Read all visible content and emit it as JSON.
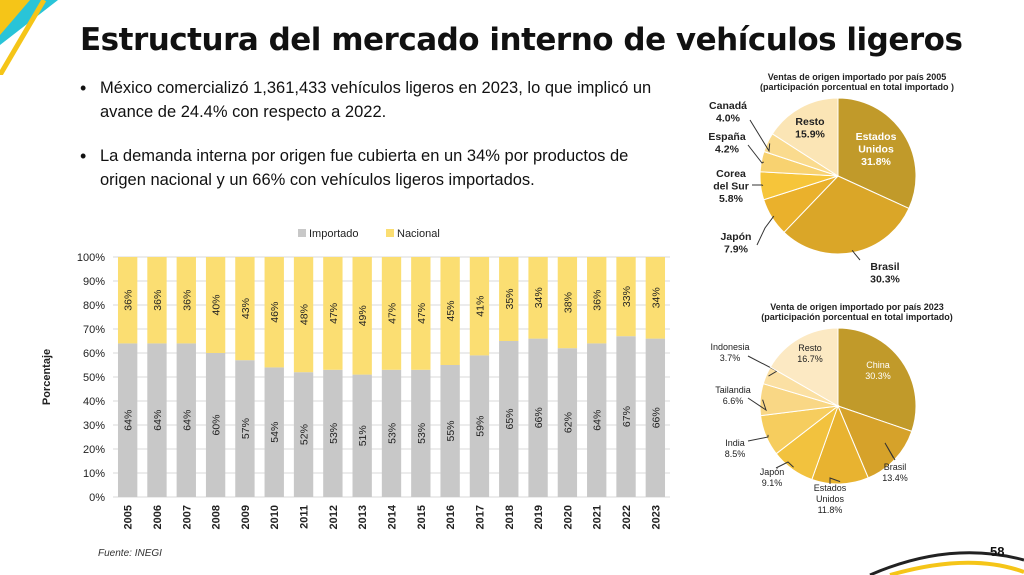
{
  "title": "Estructura del mercado interno de vehículos ligeros",
  "bullets": [
    "México comercializó 1,361,433 vehículos ligeros en 2023, lo que implicó un avance de 24.4% con respecto a 2022.",
    "La demanda interna por origen fue cubierta en un 34% por productos de origen nacional y un 66% con vehículos ligeros importados."
  ],
  "source": "Fuente: INEGI",
  "page_number": "58",
  "colors": {
    "importado": "#c8c8c8",
    "nacional": "#fbde72",
    "accent_yellow": "#f5c518",
    "accent_cyan": "#29c4d8"
  },
  "chart_data": [
    {
      "type": "bar",
      "stacked": true,
      "ylabel": "Porcentaje",
      "ylim": [
        0,
        100
      ],
      "yticks": [
        "0%",
        "10%",
        "20%",
        "30%",
        "40%",
        "50%",
        "60%",
        "70%",
        "80%",
        "90%",
        "100%"
      ],
      "legend_position": "top",
      "categories": [
        "2005",
        "2006",
        "2007",
        "2008",
        "2009",
        "2010",
        "2011",
        "2012",
        "2013",
        "2014",
        "2015",
        "2016",
        "2017",
        "2018",
        "2019",
        "2020",
        "2021",
        "2022",
        "2023"
      ],
      "series": [
        {
          "name": "Importado",
          "values": [
            64,
            64,
            64,
            60,
            57,
            54,
            52,
            53,
            51,
            53,
            53,
            55,
            59,
            65,
            66,
            62,
            64,
            67,
            66
          ],
          "labels": [
            "64%",
            "64%",
            "64%",
            "60%",
            "57%",
            "54%",
            "52%",
            "53%",
            "51%",
            "53%",
            "53%",
            "55%",
            "59%",
            "65%",
            "66%",
            "62%",
            "64%",
            "67%",
            "66%"
          ]
        },
        {
          "name": "Nacional",
          "values": [
            36,
            36,
            36,
            40,
            43,
            46,
            48,
            47,
            49,
            47,
            47,
            45,
            41,
            35,
            34,
            38,
            36,
            33,
            34
          ],
          "labels": [
            "36%",
            "36%",
            "36%",
            "40%",
            "43%",
            "46%",
            "48%",
            "47%",
            "49%",
            "47%",
            "47%",
            "45%",
            "41%",
            "35%",
            "34%",
            "38%",
            "36%",
            "33%",
            "34%"
          ]
        }
      ]
    },
    {
      "type": "pie",
      "title": [
        "Ventas de origen importado por país 2005",
        "(participación porcentual en total importado )"
      ],
      "slices": [
        {
          "name": [
            "Estados",
            "Unidos"
          ],
          "value": 31.8,
          "label": "31.8%",
          "color": "#c19a2a"
        },
        {
          "name": [
            "Brasil"
          ],
          "value": 30.3,
          "label": "30.3%",
          "color": "#daa628"
        },
        {
          "name": [
            "Japón"
          ],
          "value": 7.9,
          "label": "7.9%",
          "color": "#eab12c"
        },
        {
          "name": [
            "Corea",
            "del Sur"
          ],
          "value": 5.8,
          "label": "5.8%",
          "color": "#f6c53a"
        },
        {
          "name": [
            "España"
          ],
          "value": 4.2,
          "label": "4.2%",
          "color": "#f8d270"
        },
        {
          "name": [
            "Canadá"
          ],
          "value": 4.0,
          "label": "4.0%",
          "color": "#fadb8e"
        },
        {
          "name": [
            "Resto"
          ],
          "value": 15.9,
          "label": "15.9%",
          "color": "#fbe5b5"
        }
      ]
    },
    {
      "type": "pie",
      "title": [
        "Venta de origen importado por país 2023",
        "(participación porcentual en total importado)"
      ],
      "slices": [
        {
          "name": [
            "China"
          ],
          "value": 30.3,
          "label": "30.3%",
          "color": "#c19a2a"
        },
        {
          "name": [
            "Brasil"
          ],
          "value": 13.4,
          "label": "13.4%",
          "color": "#d6a22a"
        },
        {
          "name": [
            "Estados",
            "Unidos"
          ],
          "value": 11.8,
          "label": "11.8%",
          "color": "#e8b330"
        },
        {
          "name": [
            "Japón"
          ],
          "value": 9.1,
          "label": "9.1%",
          "color": "#f2c23e"
        },
        {
          "name": [
            "India"
          ],
          "value": 8.5,
          "label": "8.5%",
          "color": "#f6cd5e"
        },
        {
          "name": [
            "Tailandia"
          ],
          "value": 6.6,
          "label": "6.6%",
          "color": "#f9d785"
        },
        {
          "name": [
            "Indonesia"
          ],
          "value": 3.7,
          "label": "3.7%",
          "color": "#fbe0a3"
        },
        {
          "name": [
            "Resto"
          ],
          "value": 16.7,
          "label": "16.7%",
          "color": "#fce9c3"
        }
      ]
    }
  ]
}
